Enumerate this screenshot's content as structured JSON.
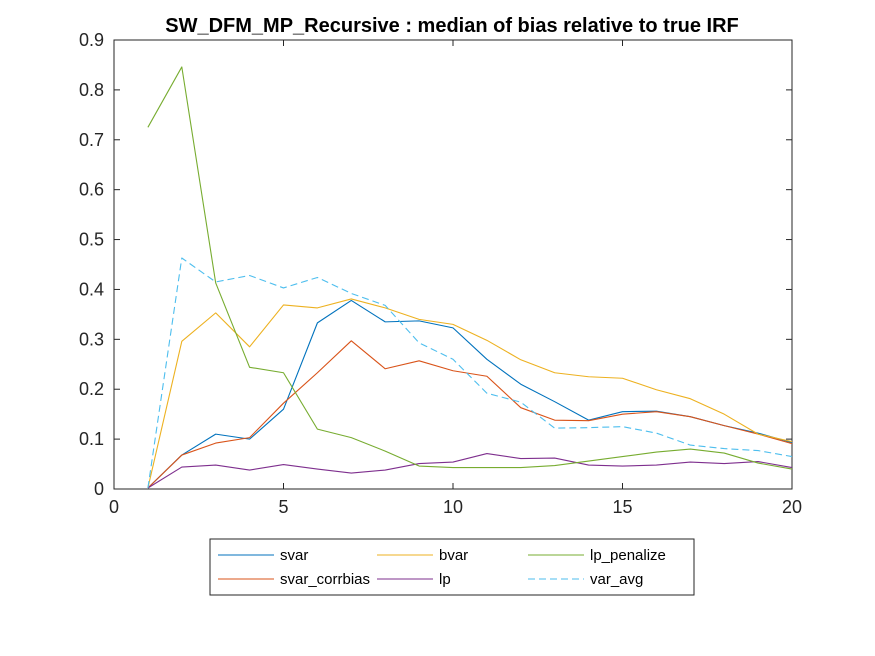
{
  "chart_data": {
    "type": "line",
    "title": "SW_DFM_MP_Recursive : median of bias relative to true IRF",
    "xlabel": "",
    "ylabel": "",
    "xlim": [
      0,
      20
    ],
    "ylim": [
      0,
      0.9
    ],
    "xticks": [
      0,
      5,
      10,
      15,
      20
    ],
    "xtick_labels": [
      "0",
      "5",
      "10",
      "15",
      "20"
    ],
    "yticks": [
      0,
      0.1,
      0.2,
      0.3,
      0.4,
      0.5,
      0.6,
      0.7,
      0.8,
      0.9
    ],
    "ytick_labels": [
      "0",
      "0.1",
      "0.2",
      "0.3",
      "0.4",
      "0.5",
      "0.6",
      "0.7",
      "0.8",
      "0.9"
    ],
    "grid": false,
    "legend_position": "bottom-outside",
    "x": [
      1,
      2,
      3,
      4,
      5,
      6,
      7,
      8,
      9,
      10,
      11,
      12,
      13,
      14,
      15,
      16,
      17,
      18,
      19,
      20
    ],
    "series": [
      {
        "name": "svar",
        "color": "#0072BD",
        "dash": "solid",
        "values": [
          0.002,
          0.068,
          0.11,
          0.1,
          0.16,
          0.333,
          0.378,
          0.335,
          0.337,
          0.323,
          0.26,
          0.21,
          0.175,
          0.138,
          0.155,
          0.156,
          0.145,
          0.127,
          0.112,
          0.093
        ]
      },
      {
        "name": "svar_corrbias",
        "color": "#D95319",
        "dash": "solid",
        "values": [
          0.002,
          0.068,
          0.092,
          0.103,
          0.172,
          0.233,
          0.297,
          0.241,
          0.257,
          0.237,
          0.226,
          0.163,
          0.138,
          0.137,
          0.15,
          0.155,
          0.145,
          0.127,
          0.11,
          0.091
        ]
      },
      {
        "name": "bvar",
        "color": "#EDB120",
        "dash": "solid",
        "values": [
          0.002,
          0.296,
          0.353,
          0.285,
          0.369,
          0.363,
          0.381,
          0.363,
          0.34,
          0.33,
          0.298,
          0.259,
          0.233,
          0.225,
          0.222,
          0.199,
          0.181,
          0.15,
          0.11,
          0.095
        ]
      },
      {
        "name": "lp",
        "color": "#7E2F8E",
        "dash": "solid",
        "values": [
          0.002,
          0.044,
          0.048,
          0.038,
          0.049,
          0.04,
          0.032,
          0.038,
          0.051,
          0.054,
          0.071,
          0.061,
          0.062,
          0.048,
          0.046,
          0.048,
          0.054,
          0.051,
          0.055,
          0.043
        ]
      },
      {
        "name": "lp_penalize",
        "color": "#77AC30",
        "dash": "solid",
        "values": [
          0.725,
          0.846,
          0.413,
          0.244,
          0.233,
          0.12,
          0.103,
          0.076,
          0.046,
          0.043,
          0.043,
          0.043,
          0.047,
          0.056,
          0.065,
          0.074,
          0.08,
          0.072,
          0.052,
          0.04
        ]
      },
      {
        "name": "var_avg",
        "color": "#4DBEEE",
        "dash": "dashed",
        "values": [
          0.002,
          0.463,
          0.415,
          0.428,
          0.403,
          0.424,
          0.392,
          0.368,
          0.293,
          0.26,
          0.192,
          0.174,
          0.122,
          0.123,
          0.125,
          0.112,
          0.088,
          0.081,
          0.077,
          0.065
        ]
      }
    ],
    "legend_rows": [
      [
        "svar",
        "bvar",
        "lp_penalize"
      ],
      [
        "svar_corrbias",
        "lp",
        "var_avg"
      ]
    ]
  }
}
